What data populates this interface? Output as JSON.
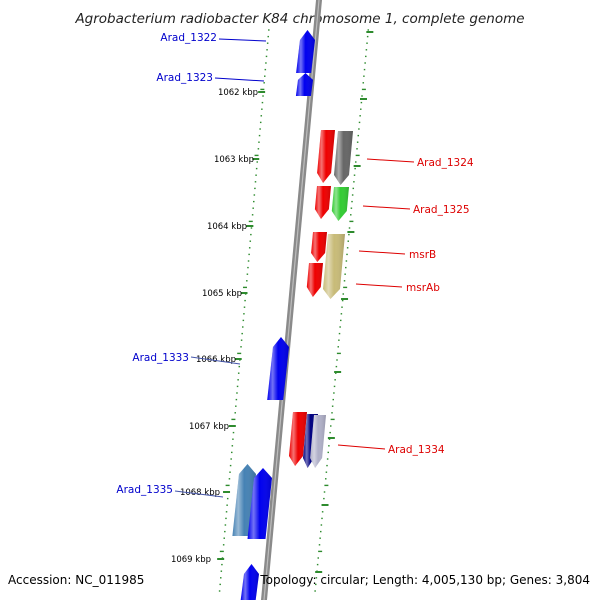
{
  "title": "Agrobacterium radiobacter K84 chromosome 1, complete genome",
  "accession": "Accession: NC_011985",
  "summary": "Topology: circular; Length: 4,005,130 bp; Genes: 3,804",
  "colors": {
    "backbone": "#8a8a8a",
    "tick": "#2e8b2e",
    "left_label": "#0000cc",
    "right_label": "#dd0000"
  },
  "kbp_ticks": [
    "1062 kbp",
    "1063 kbp",
    "1064 kbp",
    "1065 kbp",
    "1066 kbp",
    "1067 kbp",
    "1068 kbp",
    "1069 kbp"
  ],
  "left_labels": [
    "Arad_1322",
    "Arad_1323",
    "Arad_1333",
    "Arad_1335"
  ],
  "right_labels": [
    "Arad_1324",
    "Arad_1325",
    "msrB",
    "msrAb",
    "Arad_1334"
  ],
  "genes": [
    {
      "color": "#0000ee",
      "direction": "up"
    },
    {
      "color": "#0000ee",
      "direction": "up"
    },
    {
      "color": "#ee0000",
      "direction": "down"
    },
    {
      "color": "#666666",
      "direction": "down"
    },
    {
      "color": "#ee0000",
      "direction": "down"
    },
    {
      "color": "#33cc33",
      "direction": "down"
    },
    {
      "color": "#ee0000",
      "direction": "down"
    },
    {
      "color": "#ee0000",
      "direction": "down"
    },
    {
      "color": "#c8bb78",
      "direction": "down"
    },
    {
      "color": "#0000ee",
      "direction": "up"
    },
    {
      "color": "#ee0000",
      "direction": "down"
    },
    {
      "color": "#000080",
      "direction": "down"
    },
    {
      "color": "#b0b0c8",
      "direction": "down"
    },
    {
      "color": "#4682b4",
      "direction": "up"
    },
    {
      "color": "#0000ee",
      "direction": "up"
    },
    {
      "color": "#0000ee",
      "direction": "up"
    }
  ]
}
